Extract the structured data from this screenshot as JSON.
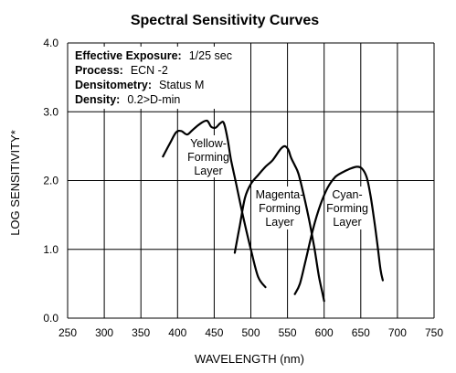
{
  "chart_data": {
    "type": "line",
    "title": "Spectral Sensitivity Curves",
    "xlabel": "WAVELENGTH (nm)",
    "ylabel": "LOG SENSITIVITY*",
    "xlim": [
      250,
      750
    ],
    "ylim": [
      0.0,
      4.0
    ],
    "grid": true,
    "x_ticks": [
      "250",
      "300",
      "350",
      "400",
      "450",
      "500",
      "550",
      "600",
      "650",
      "700",
      "750"
    ],
    "y_ticks": [
      "0.0",
      "1.0",
      "2.0",
      "3.0",
      "4.0"
    ],
    "info": [
      {
        "label": "Effective Exposure:",
        "value": "1/25 sec"
      },
      {
        "label": "Process:",
        "value": "ECN -2"
      },
      {
        "label": "Densitometry:",
        "value": "Status M"
      },
      {
        "label": "Density:",
        "value": "0.2>D-min"
      }
    ],
    "series": [
      {
        "name": "Yellow-Forming Layer",
        "label_lines": [
          "Yellow-",
          "Forming",
          "Layer"
        ],
        "x": [
          380,
          390,
          398,
          405,
          413,
          420,
          430,
          440,
          446,
          452,
          458,
          463,
          468,
          473,
          480,
          490,
          500,
          510,
          520
        ],
        "y": [
          2.35,
          2.55,
          2.7,
          2.72,
          2.67,
          2.73,
          2.82,
          2.87,
          2.78,
          2.77,
          2.83,
          2.84,
          2.62,
          2.3,
          1.95,
          1.45,
          1.0,
          0.6,
          0.45
        ]
      },
      {
        "name": "Magenta-Forming Layer",
        "label_lines": [
          "Magenta-",
          "Forming",
          "Layer"
        ],
        "x": [
          478,
          485,
          492,
          500,
          510,
          520,
          530,
          540,
          546,
          551,
          555,
          560,
          565,
          572,
          580,
          587,
          593,
          598,
          600
        ],
        "y": [
          0.95,
          1.35,
          1.75,
          1.95,
          2.08,
          2.2,
          2.3,
          2.45,
          2.5,
          2.45,
          2.33,
          2.22,
          2.1,
          1.8,
          1.4,
          1.0,
          0.6,
          0.35,
          0.25
        ]
      },
      {
        "name": "Cyan-Forming Layer",
        "label_lines": [
          "Cyan-",
          "Forming",
          "Layer"
        ],
        "x": [
          560,
          567,
          575,
          585,
          595,
          605,
          615,
          625,
          635,
          645,
          652,
          658,
          663,
          668,
          673,
          677,
          680
        ],
        "y": [
          0.35,
          0.5,
          0.85,
          1.3,
          1.65,
          1.9,
          2.05,
          2.12,
          2.17,
          2.2,
          2.17,
          2.05,
          1.8,
          1.45,
          1.05,
          0.7,
          0.55
        ]
      }
    ]
  }
}
